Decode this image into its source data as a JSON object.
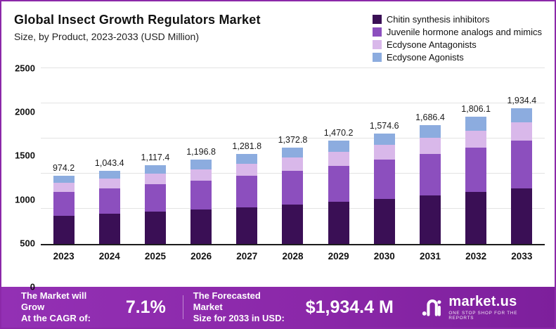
{
  "header": {
    "title": "Global Insect Growth Regulators Market",
    "subtitle": "Size, by Product, 2023-2033 (USD Million)"
  },
  "chart_data": {
    "type": "bar",
    "stacked": true,
    "title": "Global Insect Growth Regulators Market",
    "subtitle": "Size, by Product, 2023-2033 (USD Million)",
    "unit": "USD Million",
    "categories": [
      "2023",
      "2024",
      "2025",
      "2026",
      "2027",
      "2028",
      "2029",
      "2030",
      "2031",
      "2032",
      "2033"
    ],
    "series": [
      {
        "name": "Chitin synthesis inhibitors",
        "color": "#3a0f55",
        "values": [
          400,
          430,
          460,
          490,
          525,
          560,
          605,
          645,
          690,
          740,
          795
        ]
      },
      {
        "name": "Juvenile hormone analogs and mimics",
        "color": "#8c4fbe",
        "values": [
          340,
          360,
          390,
          415,
          445,
          480,
          505,
          555,
          590,
          628,
          675
        ]
      },
      {
        "name": "Ecdysone Antagonists",
        "color": "#d9b8ea",
        "values": [
          130,
          140,
          150,
          160,
          172,
          188,
          200,
          212,
          228,
          246,
          264
        ]
      },
      {
        "name": "Ecdysone Agonists",
        "color": "#8cacdf",
        "values": [
          104.2,
          113.4,
          117.4,
          131.8,
          139.8,
          144.8,
          160.2,
          162.6,
          178.4,
          192.1,
          200.4
        ]
      }
    ],
    "totals": [
      "974.2",
      "1,043.4",
      "1,117.4",
      "1,196.8",
      "1,281.8",
      "1,372.8",
      "1,470.2",
      "1,574.6",
      "1,686.4",
      "1,806.1",
      "1,934.4"
    ],
    "ylim": [
      0,
      2500
    ],
    "yticks": [
      0,
      500,
      1000,
      1500,
      2000,
      2500
    ],
    "legend_position": "top-right",
    "grid": true
  },
  "banner": {
    "cagr_label": "The Market will Grow\nAt the CAGR of:",
    "cagr_value": "7.1%",
    "forecast_label": "The Forecasted Market\nSize for 2033 in USD:",
    "forecast_value": "$1,934.4 M",
    "brand": "market.us",
    "brand_tagline": "One Stop Shop For The Reports"
  }
}
